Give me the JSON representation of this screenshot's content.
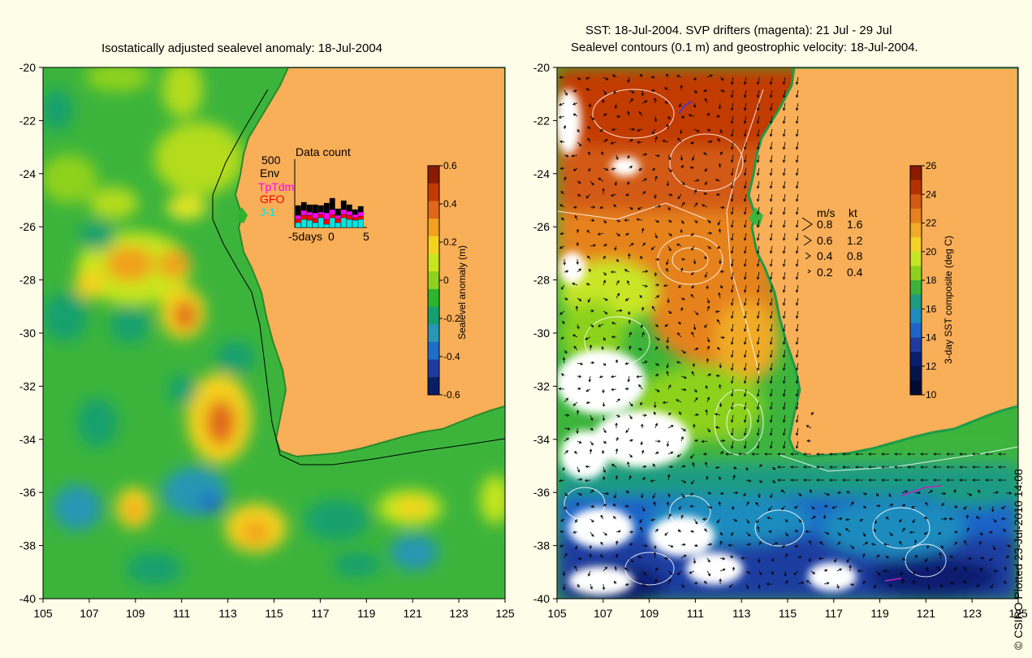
{
  "left_map": {
    "title": "Isostatically adjusted sealevel anomaly: 18-Jul-2004",
    "x_ticks": [
      "105",
      "107",
      "109",
      "111",
      "113",
      "115",
      "117",
      "119",
      "121",
      "123",
      "125"
    ],
    "y_ticks": [
      "-20",
      "-22",
      "-24",
      "-26",
      "-28",
      "-30",
      "-32",
      "-34",
      "-36",
      "-38",
      "-40"
    ],
    "colorbar": {
      "label": "Sealevel anomaly (m)",
      "ticks": [
        "0.6",
        "0.4",
        "0.2",
        "0",
        "-0.2",
        "-0.4",
        "-0.6"
      ],
      "colors": [
        "#8b1a00",
        "#c23a00",
        "#e0661a",
        "#f2a01e",
        "#f5d21e",
        "#c8e61e",
        "#8fd21e",
        "#2db42d",
        "#14a06e",
        "#2896b4",
        "#1e6ec8",
        "#1e3ca0",
        "#0a1e64"
      ]
    },
    "inset": {
      "title": "Data count",
      "scale_label": "500",
      "legend": [
        {
          "name": "Env",
          "color": "#000000"
        },
        {
          "name": "TpTdm",
          "color": "#ff00ff"
        },
        {
          "name": "GFO",
          "color": "#ff0000"
        },
        {
          "name": "J-1",
          "color": "#00e5e5"
        }
      ],
      "x_ticks": [
        "-5days",
        "0",
        "5"
      ]
    }
  },
  "right_map": {
    "title_line1": "SST: 18-Jul-2004. SVP drifters (magenta): 21 Jul - 29 Jul",
    "title_line2": "Sealevel contours (0.1 m) and geostrophic velocity: 18-Jul-2004.",
    "x_ticks": [
      "105",
      "107",
      "109",
      "111",
      "113",
      "115",
      "117",
      "119",
      "121",
      "123",
      "125"
    ],
    "y_ticks": [
      "-20",
      "-22",
      "-24",
      "-26",
      "-28",
      "-30",
      "-32",
      "-34",
      "-36",
      "-38",
      "-40"
    ],
    "colorbar": {
      "label": "3-day SST composite (deg C)",
      "ticks": [
        "26",
        "24",
        "22",
        "20",
        "18",
        "16",
        "14",
        "12",
        "10"
      ],
      "colors": [
        "#8b1a00",
        "#b43200",
        "#d25a14",
        "#e6821e",
        "#f0aa28",
        "#f5d228",
        "#c8e628",
        "#8cd21e",
        "#3cb43c",
        "#1e9b82",
        "#1e8cbe",
        "#1e64c8",
        "#1e3ca0",
        "#0a1e6e",
        "#05144b",
        "#000a32"
      ]
    },
    "velocity_legend": {
      "header_ms": "m/s",
      "header_kt": "kt",
      "rows": [
        {
          "ms": "0.8",
          "kt": "1.6"
        },
        {
          "ms": "0.6",
          "kt": "1.2"
        },
        {
          "ms": "0.4",
          "kt": "0.8"
        },
        {
          "ms": "0.2",
          "kt": "0.4"
        }
      ]
    }
  },
  "colors": {
    "background": "#fdfde8",
    "land": "#f9ae58",
    "base_green": "#3cb43c"
  },
  "copyright": "© CSIRO Plotted 23-Jul-2010 14:08"
}
